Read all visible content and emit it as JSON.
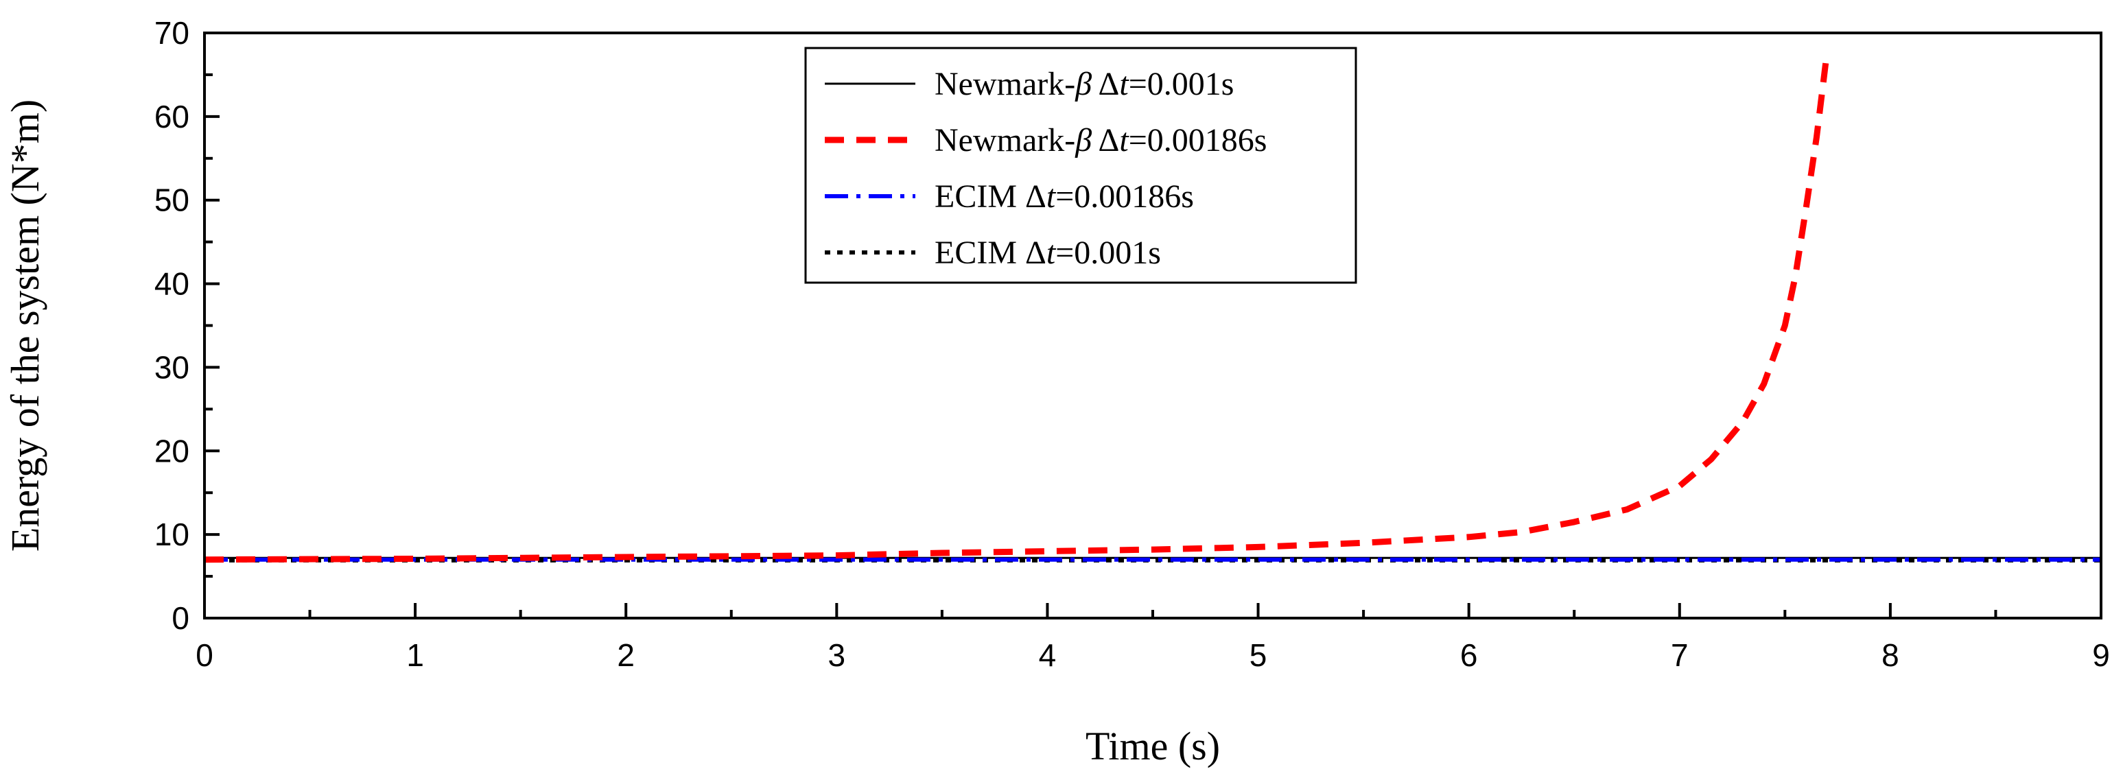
{
  "chart_data": {
    "type": "line",
    "title": "",
    "xlabel": "Time (s)",
    "ylabel": "Energy of the system (N*m)",
    "xlim": [
      0,
      9
    ],
    "ylim": [
      0,
      70
    ],
    "xticks": [
      0,
      1,
      2,
      3,
      4,
      5,
      6,
      7,
      8,
      9
    ],
    "yticks": [
      0,
      10,
      20,
      30,
      40,
      50,
      60,
      70
    ],
    "grid": false,
    "legend_position": "top-center",
    "series": [
      {
        "name": "Newmark-β Δt=0.001s",
        "legend_prefix": "Newmark-",
        "legend_symbol": "β",
        "legend_mid": " Δ",
        "legend_var": "t",
        "legend_suffix": "=0.001s",
        "color": "#000000",
        "dash": "solid",
        "x": [
          0,
          9
        ],
        "y": [
          7.2,
          7.2
        ]
      },
      {
        "name": "Newmark-β Δt=0.00186s",
        "legend_prefix": "Newmark-",
        "legend_symbol": "β",
        "legend_mid": " Δ",
        "legend_var": "t",
        "legend_suffix": "=0.00186s",
        "color": "#ff0000",
        "dash": "dashed",
        "x": [
          0,
          1,
          2,
          3,
          3.5,
          4,
          4.5,
          5,
          5.5,
          6,
          6.25,
          6.5,
          6.75,
          7,
          7.15,
          7.3,
          7.4,
          7.5,
          7.55,
          7.6,
          7.65,
          7.7
        ],
        "y": [
          7.0,
          7.1,
          7.3,
          7.5,
          7.8,
          8.0,
          8.2,
          8.5,
          9.0,
          9.7,
          10.3,
          11.5,
          13.0,
          15.8,
          19.0,
          23.5,
          28.0,
          35.0,
          41.0,
          49.0,
          57.5,
          67.8
        ]
      },
      {
        "name": "ECIM Δt=0.00186s",
        "legend_prefix": "ECIM",
        "legend_symbol": "",
        "legend_mid": "   Δ",
        "legend_var": "t",
        "legend_suffix": "=0.00186s",
        "color": "#0000ff",
        "dash": "dashdot",
        "x": [
          0,
          9
        ],
        "y": [
          7.0,
          7.0
        ]
      },
      {
        "name": "ECIM Δt=0.001s",
        "legend_prefix": "ECIM",
        "legend_symbol": "",
        "legend_mid": "   Δ",
        "legend_var": "t",
        "legend_suffix": "=0.001s",
        "color": "#000000",
        "dash": "dotted",
        "x": [
          0,
          9
        ],
        "y": [
          6.9,
          6.9
        ]
      }
    ]
  }
}
